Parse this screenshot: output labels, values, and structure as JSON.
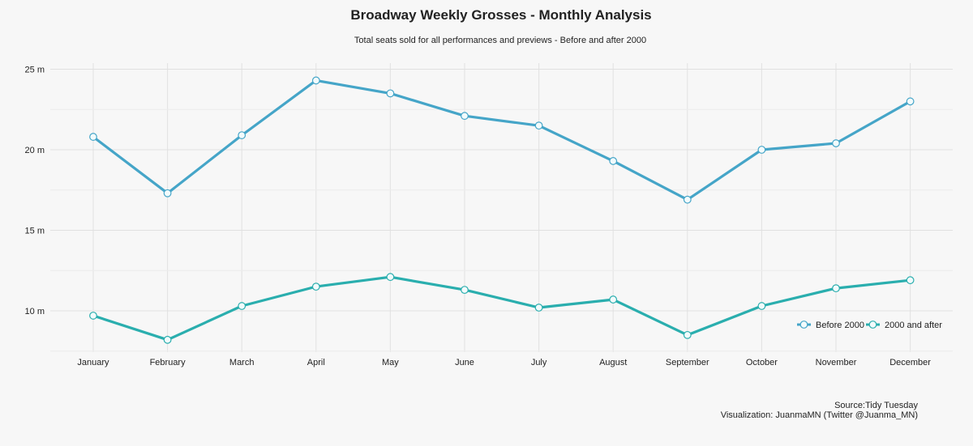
{
  "chart_data": {
    "type": "line",
    "title": "Broadway Weekly Grosses - Monthly Analysis",
    "subtitle": "Total seats sold for all performances and previews - Before and after 2000",
    "xlabel": "",
    "ylabel": "",
    "categories": [
      "January",
      "February",
      "March",
      "April",
      "May",
      "June",
      "July",
      "August",
      "September",
      "October",
      "November",
      "December"
    ],
    "y_ticks": [
      10,
      15,
      20,
      25
    ],
    "y_tick_labels": [
      "10 m",
      "15 m",
      "20 m",
      "25 m"
    ],
    "y_unit": "millions of seats",
    "ylim": [
      7.5,
      25.6
    ],
    "grid": true,
    "legend_position": "bottom-right",
    "series": [
      {
        "name": "Before 2000",
        "color": "#45a5c8",
        "values": [
          20.8,
          17.3,
          20.9,
          24.3,
          23.5,
          22.1,
          21.5,
          19.3,
          16.9,
          20.0,
          20.4,
          23.0
        ]
      },
      {
        "name": "2000 and after",
        "color": "#2aaeae",
        "values": [
          9.7,
          8.2,
          10.3,
          11.5,
          12.1,
          11.3,
          10.2,
          10.7,
          8.5,
          10.3,
          11.4,
          11.9
        ]
      }
    ],
    "caption": [
      "Source:Tidy Tuesday",
      "Visualization: JuanmaMN (Twitter @Juanma_MN)"
    ]
  }
}
